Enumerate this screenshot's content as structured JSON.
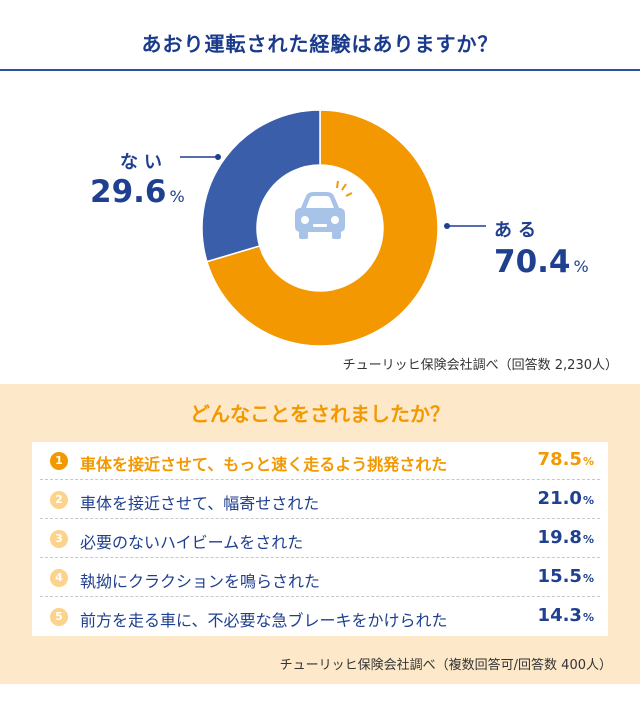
{
  "chart_data": [
    {
      "type": "pie",
      "title": "あおり運転された経験はありますか？",
      "categories": [
        "ある",
        "ない"
      ],
      "values": [
        70.4,
        29.6
      ],
      "value_labels": [
        "70.4",
        "29.6"
      ],
      "unit": "%",
      "colors": [
        "#f39800",
        "#3a5eaa"
      ],
      "center_icon": "car-alert-icon",
      "source": "チューリッヒ保険会社調べ（回答数 2,230人）"
    },
    {
      "type": "table",
      "title": "どんなことをされましたか？",
      "categories": [
        "車体を接近させて、もっと速く走るよう挑発された",
        "車体を接近させて、幅寄せされた",
        "必要のないハイビームをされた",
        "執拗にクラクションを鳴らされた",
        "前方を走る車に、不必要な急ブレーキをかけられた"
      ],
      "ranks": [
        "1",
        "2",
        "3",
        "4",
        "5"
      ],
      "values": [
        78.5,
        21.0,
        19.8,
        15.5,
        14.3
      ],
      "value_labels": [
        "78.5",
        "21.0",
        "19.8",
        "15.5",
        "14.3"
      ],
      "unit": "%",
      "highlight_color": "#f39800",
      "source": "チューリッヒ保険会社調べ（複数回答可/回答数 400人）"
    }
  ]
}
